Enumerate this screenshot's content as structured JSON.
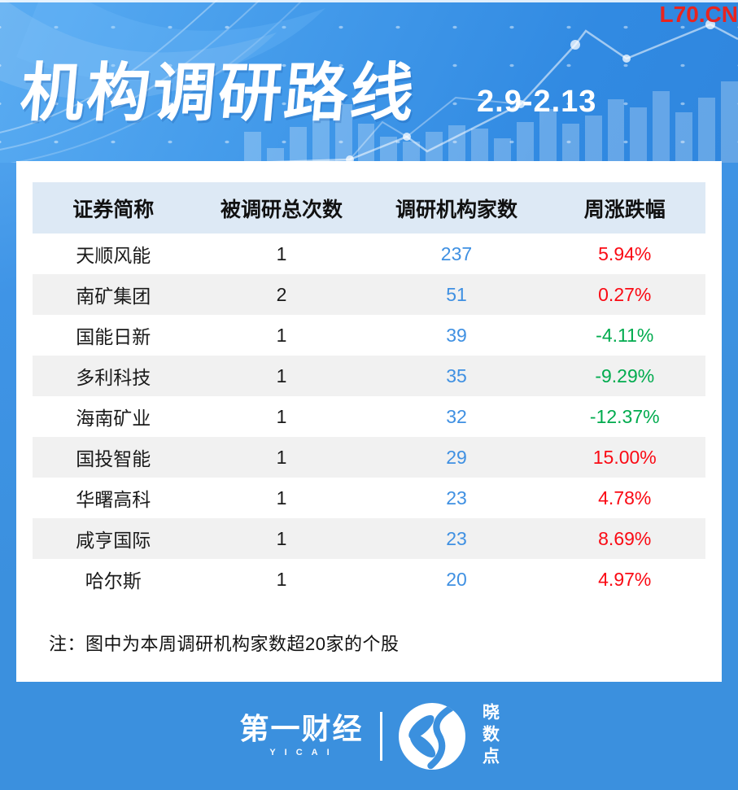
{
  "watermark": "L70.CN",
  "header": {
    "title": "机构调研路线",
    "date_range": "2.9-2.13"
  },
  "chart_data": {
    "type": "table",
    "title": "机构调研路线",
    "subtitle": "2.9-2.13",
    "columns": [
      "证券简称",
      "被调研总次数",
      "调研机构家数",
      "周涨跌幅"
    ],
    "rows": [
      [
        "天顺风能",
        "1",
        "237",
        "5.94%"
      ],
      [
        "南矿集团",
        "2",
        "51",
        "0.27%"
      ],
      [
        "国能日新",
        "1",
        "39",
        "-4.11%"
      ],
      [
        "多利科技",
        "1",
        "35",
        "-9.29%"
      ],
      [
        "海南矿业",
        "1",
        "32",
        "-12.37%"
      ],
      [
        "国投智能",
        "1",
        "29",
        "15.00%"
      ],
      [
        "华曙高科",
        "1",
        "23",
        "4.78%"
      ],
      [
        "咸亨国际",
        "1",
        "23",
        "8.69%"
      ],
      [
        "哈尔斯",
        "1",
        "20",
        "4.97%"
      ]
    ],
    "change_directions": [
      "up",
      "up",
      "down",
      "down",
      "down",
      "up",
      "up",
      "up",
      "up"
    ],
    "note": "注：图中为本周调研机构家数超20家的个股"
  },
  "footer": {
    "brand": "第一财经",
    "brand_sub": "YICAI",
    "logo_label": "晓数点"
  },
  "colors": {
    "up_red": "#fa0a14",
    "down_green": "#00ab4e",
    "institution_blue": "#3f90e2",
    "accent_red": "#e8241f",
    "page_blue": "#3b90de",
    "table_header_band": "#dde9f5",
    "row_alt_gray": "#f1f1f1"
  }
}
